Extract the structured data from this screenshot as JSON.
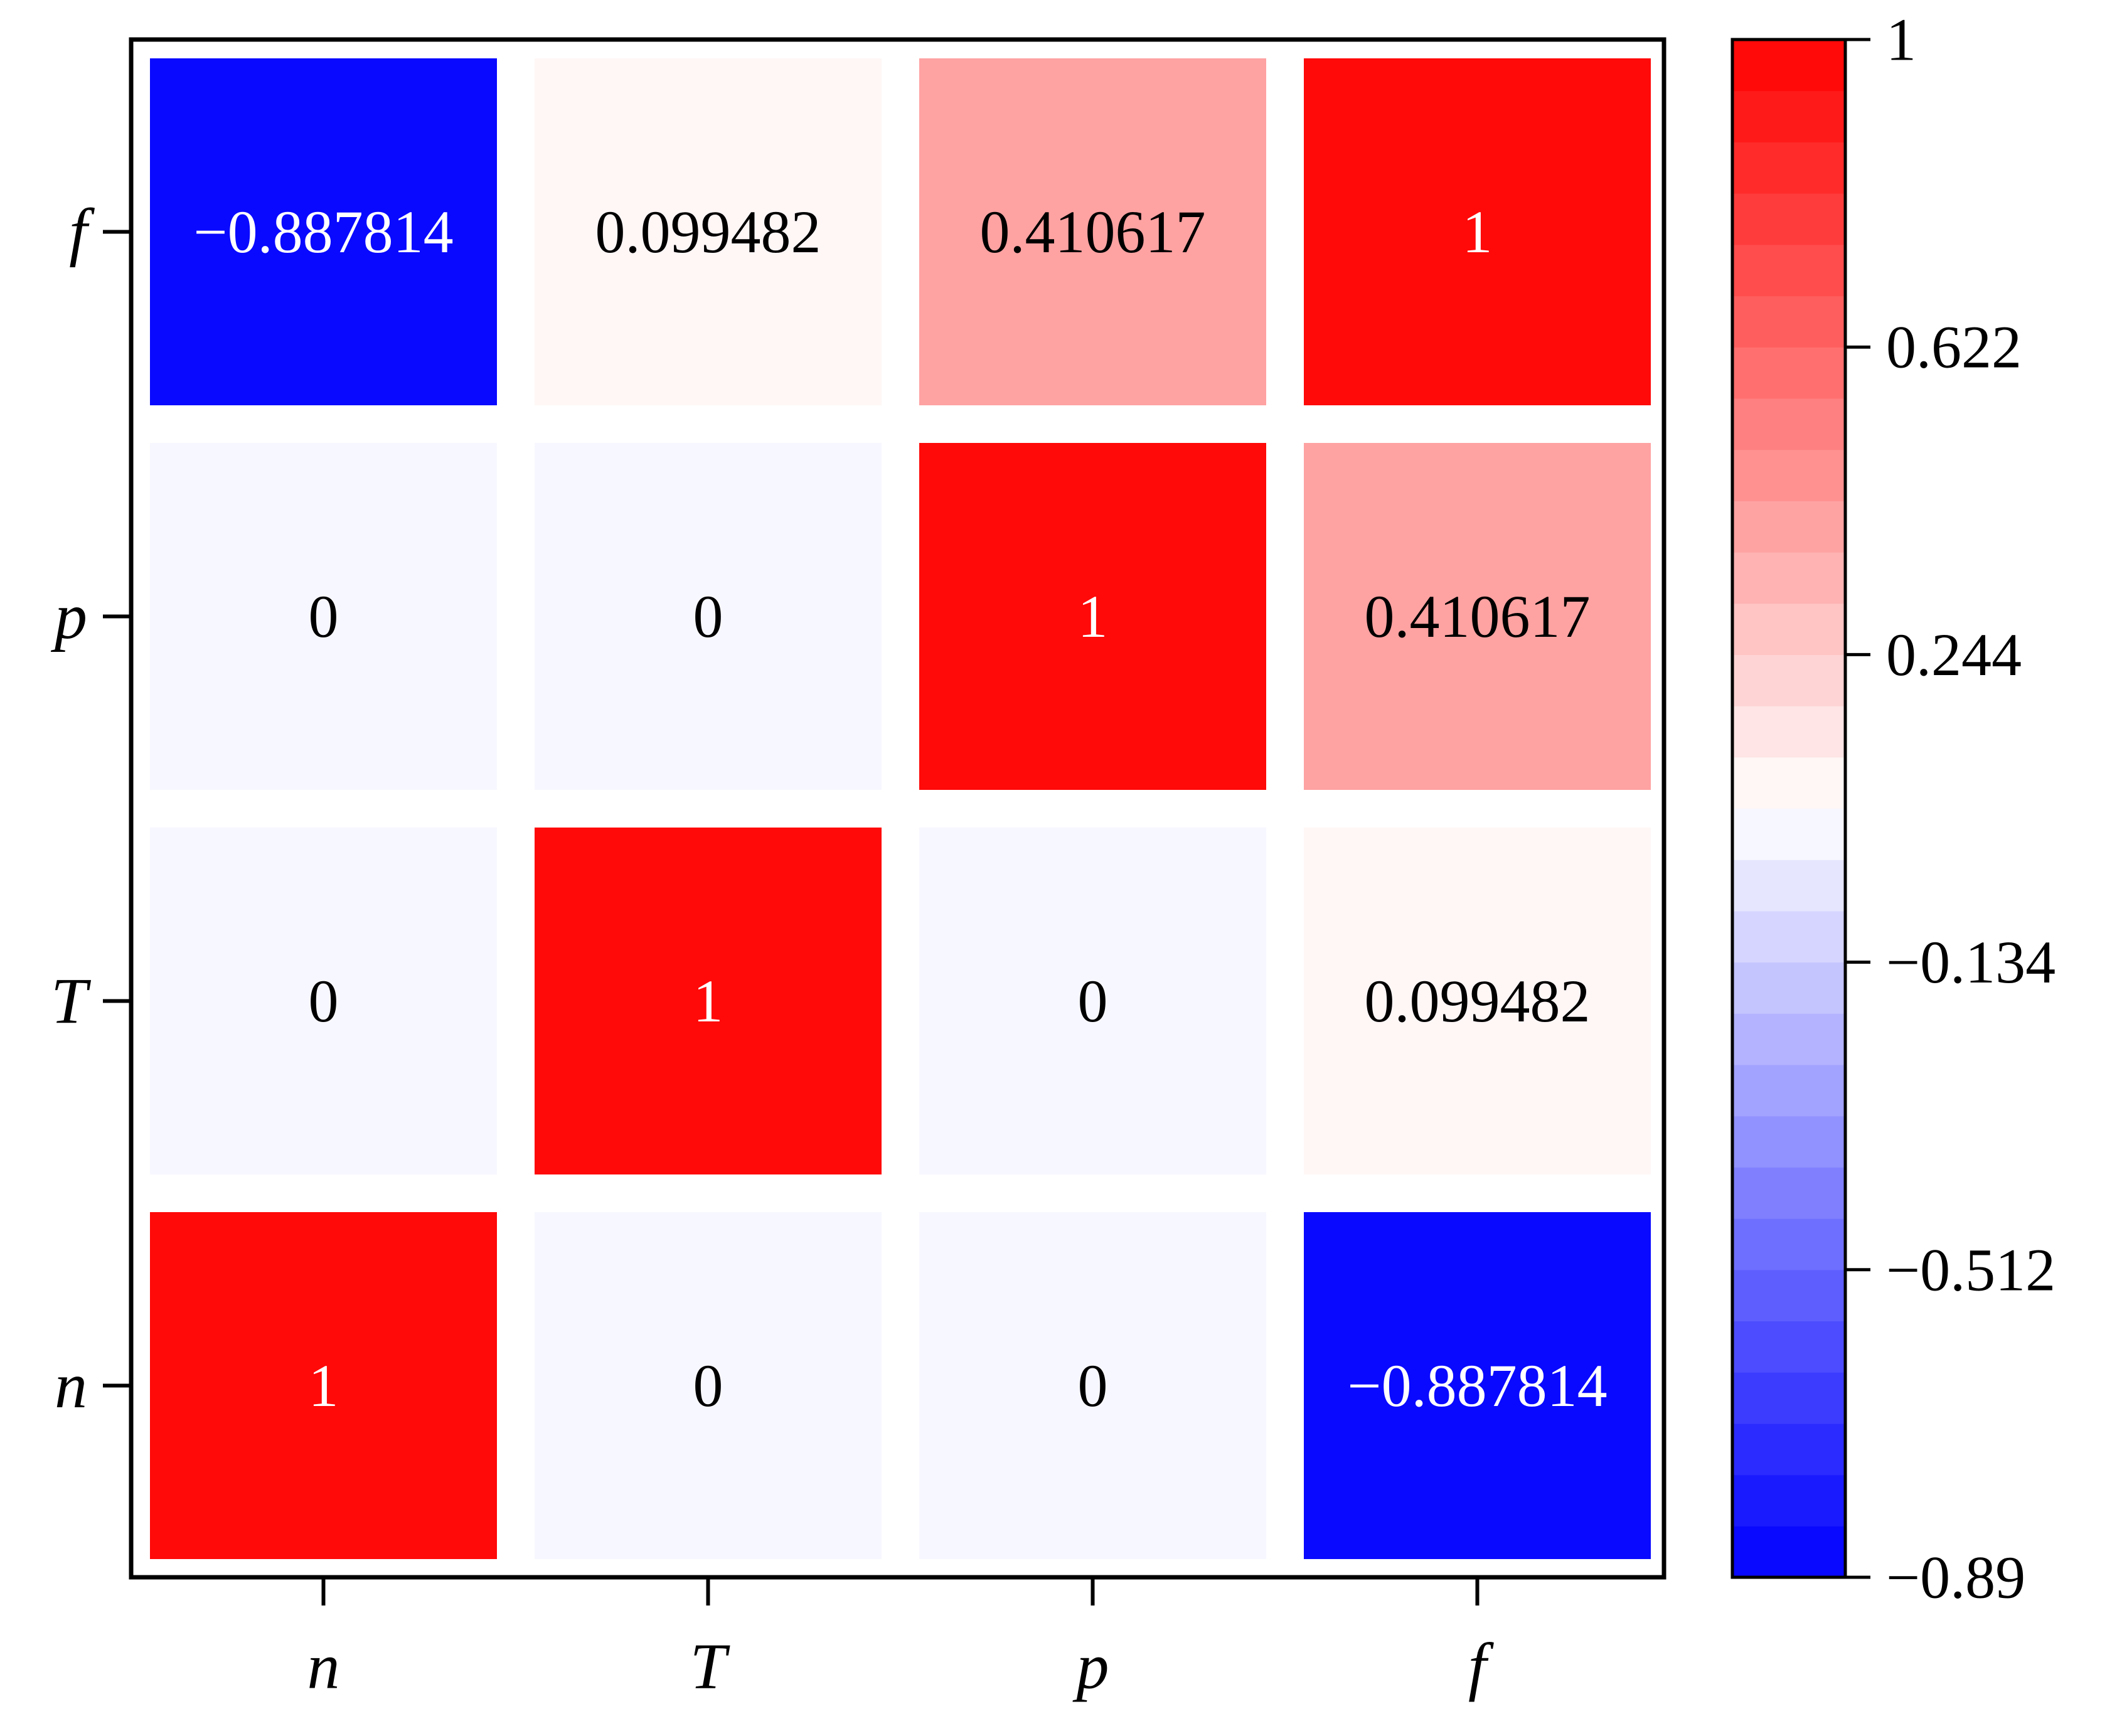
{
  "chart_data": {
    "type": "heatmap",
    "title": "",
    "xlabel": "",
    "ylabel": "",
    "x_categories": [
      "n",
      "T",
      "p",
      "f"
    ],
    "y_categories_bottom_to_top": [
      "n",
      "T",
      "p",
      "f"
    ],
    "matrix_rows_bottom_to_top": [
      [
        1,
        0,
        0,
        -0.887814
      ],
      [
        0,
        1,
        0,
        0.099482
      ],
      [
        0,
        0,
        1,
        0.410617
      ],
      [
        -0.887814,
        0.099482,
        0.410617,
        1
      ]
    ],
    "cell_labels_rows_bottom_to_top": [
      [
        "1",
        "0",
        "0",
        "−0.887814"
      ],
      [
        "0",
        "1",
        "0",
        "0.099482"
      ],
      [
        "0",
        "0",
        "1",
        "0.410617"
      ],
      [
        "−0.887814",
        "0.099482",
        "0.410617",
        "1"
      ]
    ],
    "colorbar": {
      "min": -0.89,
      "max": 1,
      "levels": 30,
      "ticks": [
        -0.89,
        -0.512,
        -0.134,
        0.244,
        0.622,
        1
      ],
      "tick_labels": [
        "−0.89",
        "−0.512",
        "−0.134",
        "0.244",
        "0.622",
        "1"
      ],
      "colormap": "bwr",
      "low_color": "#0000ff",
      "mid_color": "#ffffff",
      "high_color": "#ff0000"
    },
    "colors": {
      "frame": "#000000",
      "dark_text": "#000000",
      "light_text": "#ffffff"
    }
  }
}
